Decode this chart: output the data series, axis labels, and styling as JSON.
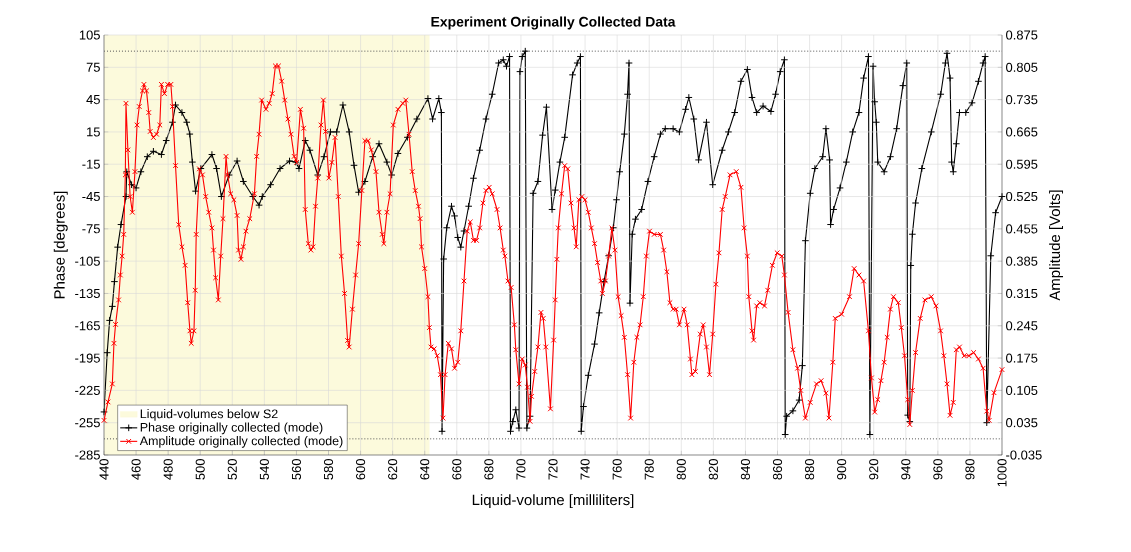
{
  "chart_data": {
    "type": "line",
    "title": "Experiment Originally Collected Data",
    "xlabel": "Liquid-volume [milliliters]",
    "ylabel": "Phase [degrees]",
    "y2label": "Amplitude [Volts]",
    "xlim": [
      440,
      1000
    ],
    "xticks": [
      440,
      460,
      480,
      500,
      520,
      540,
      560,
      580,
      600,
      620,
      640,
      660,
      680,
      700,
      720,
      740,
      760,
      780,
      800,
      820,
      840,
      860,
      880,
      900,
      920,
      940,
      960,
      980,
      1000
    ],
    "ylim": [
      -285,
      105
    ],
    "yticks": [
      -285,
      -255,
      -225,
      -195,
      -165,
      -135,
      -105,
      -75,
      -45,
      -15,
      15,
      45,
      75,
      105
    ],
    "y2lim": [
      -0.035,
      0.875
    ],
    "y2ticks": [
      -0.035,
      0.035,
      0.105,
      0.175,
      0.245,
      0.315,
      0.385,
      0.455,
      0.525,
      0.595,
      0.665,
      0.735,
      0.805,
      0.875
    ],
    "grid": true,
    "legend": "bottom left",
    "bands": [
      {
        "axis": "x",
        "from": 440,
        "to": 643,
        "label": "Liquid-volumes below S2",
        "color": "#fcfadc"
      }
    ],
    "ref_lines": [
      {
        "axis": "y",
        "value": 90,
        "color": "#555555",
        "line_style": "dotted"
      },
      {
        "axis": "y",
        "value": -270,
        "color": "#555555",
        "line_style": "dotted"
      }
    ],
    "series": [
      {
        "name": "Phase originally collected (mode)",
        "color": "#000000",
        "marker": "plus",
        "x": [
          440,
          442,
          443.5,
          445.2,
          446.5,
          448.5,
          450.6,
          453.7,
          454.2,
          457.2,
          460,
          463,
          467,
          470.8,
          475.8,
          478.8,
          482.7,
          484.6,
          488.6,
          491.6,
          493.5,
          495.1,
          497.1,
          500.4,
          507.3,
          510.2,
          513.2,
          518,
          523,
          526.9,
          532.8,
          536.7,
          538.7,
          543.9,
          549.8,
          555.7,
          559.6,
          561.6,
          565.5,
          568.4,
          573.3,
          577.2,
          581.2,
          585.1,
          589,
          592.9,
          595.9,
          598.8,
          602.7,
          607.6,
          611.5,
          616.4,
          619.4,
          623.3,
          629.2,
          635.1,
          642,
          644.9,
          648.8,
          650.4,
          650.8,
          651.8,
          653.7,
          656.7,
          658.6,
          660.6,
          662.5,
          664.5,
          667.4,
          670.4,
          674.3,
          678.2,
          682.1,
          686.1,
          689,
          691,
          692.9,
          693.5,
          694.9,
          696.8,
          698.8,
          699.4,
          700.8,
          702.7,
          703.7,
          705.7,
          707.6,
          710.6,
          713.5,
          715.9,
          719.4,
          721.4,
          724.3,
          727.3,
          732.2,
          735.1,
          737.1,
          737.6,
          739,
          742,
          745.9,
          748.8,
          751.8,
          754.7,
          757.6,
          759.6,
          761.6,
          764.5,
          766.5,
          767.4,
          768,
          769.4,
          771.4,
          775.3,
          779.2,
          783.1,
          787,
          790,
          794.9,
          798.8,
          802.7,
          804.7,
          807.8,
          810.8,
          815.7,
          819.6,
          825.5,
          829.4,
          833.3,
          837.2,
          841.2,
          844.1,
          847,
          851,
          855.9,
          858.8,
          861.7,
          864.3,
          864.8,
          865.7,
          869.6,
          873.5,
          875.5,
          877.4,
          880.4,
          883.3,
          888.2,
          890.2,
          892.5,
          893.1,
          895,
          899,
          902.9,
          906.9,
          910.8,
          913.7,
          916.7,
          917.6,
          919.6,
          920.6,
          921.6,
          922.5,
          926.5,
          930.4,
          934.3,
          938.2,
          940.6,
          941.2,
          942.5,
          943.1,
          944.1,
          946.1,
          950,
          955.9,
          961.8,
          964.7,
          965.7,
          967.6,
          968.6,
          969.6,
          971.5,
          973.5,
          977.4,
          981.3,
          985.3,
          988.2,
          989.5,
          990.5,
          993,
          996,
          1000
        ],
        "values": [
          -245,
          -190,
          -160,
          -147,
          -124,
          -92,
          -71,
          -45,
          -22,
          -34,
          -37,
          -22,
          -8,
          -3,
          -6,
          7,
          24,
          40,
          33,
          24,
          13,
          -13,
          -40,
          -19,
          -6,
          -19,
          -45,
          -25,
          -12,
          -31,
          -45,
          -53,
          -45,
          -34,
          -19,
          -12,
          -13,
          -19,
          7,
          -2,
          -25,
          -8,
          15,
          15,
          40,
          15,
          -16,
          -41,
          -31,
          -8,
          4,
          -13,
          -25,
          -5,
          10,
          27,
          46,
          27,
          46,
          33,
          -263,
          -103,
          -74,
          -54,
          -63,
          -83,
          -92,
          -77,
          -54,
          -28,
          -2,
          27,
          50,
          79,
          82,
          76,
          85,
          -263,
          -254,
          -243,
          -260,
          71,
          85,
          90,
          -260,
          -249,
          -42,
          -31,
          12,
          38,
          -57,
          -39,
          -13,
          10,
          68,
          79,
          85,
          -263,
          -240,
          -211,
          -182,
          -153,
          -124,
          -100,
          -74,
          -48,
          -22,
          13,
          50,
          79,
          -144,
          -80,
          -66,
          -57,
          -31,
          -8,
          13,
          18,
          18,
          15,
          36,
          47,
          27,
          -11,
          24,
          -34,
          -2,
          15,
          33,
          62,
          73,
          47,
          33,
          39,
          34,
          50,
          71,
          82,
          -266,
          -249,
          -244,
          -234,
          -202,
          -86,
          -42,
          -19,
          -8,
          18,
          -11,
          -71,
          -57,
          -37,
          -13,
          15,
          33,
          65,
          85,
          -266,
          76,
          43,
          24,
          -13,
          -22,
          -8,
          18,
          58,
          79,
          -248,
          -254,
          -109,
          -80,
          -51,
          -19,
          15,
          50,
          79,
          88,
          65,
          -13,
          -22,
          4,
          33,
          33,
          42,
          62,
          79,
          85,
          -255,
          -100,
          -60,
          -45
        ]
      },
      {
        "name": "Amplitude originally collected (mode)",
        "color": "#ff0000",
        "marker": "cross",
        "axis": "y2",
        "x": [
          440,
          442.5,
          445.2,
          446.2,
          447.2,
          449.1,
          450.2,
          451.3,
          452.3,
          453.3,
          453.7,
          454.9,
          456.3,
          457.7,
          459.3,
          460.6,
          462,
          464,
          464.9,
          466.5,
          467.9,
          468.8,
          470.8,
          472.8,
          474.8,
          475.8,
          477.7,
          479.7,
          481.7,
          482.7,
          484.6,
          486.6,
          488.6,
          490.6,
          492.2,
          493.6,
          494.4,
          496.1,
          496.9,
          497.5,
          499.5,
          501.4,
          503.4,
          505.3,
          507.3,
          508.3,
          509.6,
          511.3,
          512.8,
          514.2,
          516.1,
          517.1,
          519,
          521,
          523,
          523.9,
          525.4,
          526.9,
          528.5,
          530.9,
          533.8,
          535.2,
          536.7,
          538.3,
          541,
          543,
          544.9,
          546.9,
          548.8,
          550.8,
          552.7,
          554.7,
          556.6,
          558.6,
          560.1,
          562.5,
          564.5,
          565.5,
          567.4,
          569,
          570.4,
          571.9,
          573.3,
          575.3,
          576.8,
          578.2,
          580.2,
          582.1,
          584.1,
          586.1,
          588,
          590,
          591.9,
          592.9,
          594.9,
          596.9,
          598.8,
          600.8,
          602.7,
          604.7,
          606.7,
          609.6,
          611.5,
          613.5,
          614.5,
          616.4,
          618.4,
          620.4,
          623.3,
          626.3,
          628.2,
          630.2,
          632.2,
          634.1,
          636.1,
          637.1,
          638,
          640,
          642,
          642.9,
          643.9,
          645.9,
          647.8,
          649.8,
          651.4,
          652.7,
          654.7,
          656.7,
          658.6,
          660.6,
          662.5,
          664.5,
          666.5,
          668.4,
          670.4,
          672.3,
          674.3,
          676.3,
          678.2,
          680.2,
          682.1,
          685.1,
          687,
          689,
          690,
          691.9,
          693.9,
          695.9,
          696.8,
          698.8,
          700.8,
          702.7,
          704.1,
          705.7,
          706.6,
          708.6,
          710.6,
          712.5,
          713.9,
          715.5,
          718.4,
          720.4,
          721.4,
          722.4,
          723.3,
          725.3,
          727.3,
          729.2,
          731.2,
          733.1,
          734.5,
          736.1,
          738,
          740,
          742,
          743.9,
          745.9,
          747.8,
          749.8,
          750.8,
          752.7,
          754.7,
          756.7,
          758.6,
          760.6,
          762.5,
          764.5,
          766.5,
          768.4,
          770.4,
          772.3,
          774.3,
          776.3,
          778.2,
          780.2,
          783.1,
          787,
          789,
          791,
          792.9,
          794.9,
          796.8,
          798.8,
          801.7,
          803.7,
          805.7,
          806.6,
          808.8,
          811.8,
          813.7,
          815.7,
          817.6,
          819.6,
          821.6,
          823.5,
          825.5,
          827.4,
          830.4,
          834.3,
          837.2,
          839.2,
          841.2,
          842.1,
          844.1,
          845.1,
          847,
          849,
          851.9,
          853.9,
          856.8,
          859.8,
          862.7,
          864.3,
          866.6,
          869.6,
          872.5,
          874.5,
          877.4,
          880.4,
          884.3,
          887.2,
          890.2,
          892.1,
          894.5,
          896,
          900,
          904.9,
          907.8,
          910.8,
          913.7,
          916.7,
          918.6,
          920.6,
          922.5,
          924.5,
          926.5,
          928.4,
          930.4,
          932.3,
          935.3,
          937.2,
          939.2,
          941.2,
          942.5,
          944.1,
          946.1,
          949,
          951.9,
          955.9,
          958.8,
          961.7,
          963.7,
          965.7,
          967.6,
          969.6,
          971.5,
          973.5,
          976.4,
          979.4,
          982.3,
          985.3,
          988.2,
          990.5,
          992,
          995,
          1000
        ],
        "values": [
          0.04,
          0.08,
          0.119,
          0.207,
          0.248,
          0.301,
          0.355,
          0.396,
          0.443,
          0.572,
          0.727,
          0.626,
          0.525,
          0.491,
          0.579,
          0.68,
          0.72,
          0.754,
          0.768,
          0.754,
          0.707,
          0.666,
          0.653,
          0.66,
          0.68,
          0.768,
          0.748,
          0.768,
          0.768,
          0.72,
          0.592,
          0.464,
          0.416,
          0.376,
          0.295,
          0.234,
          0.207,
          0.234,
          0.322,
          0.443,
          0.585,
          0.572,
          0.525,
          0.491,
          0.457,
          0.409,
          0.349,
          0.301,
          0.396,
          0.477,
          0.612,
          0.572,
          0.531,
          0.518,
          0.484,
          0.409,
          0.389,
          0.416,
          0.45,
          0.477,
          0.531,
          0.612,
          0.66,
          0.734,
          0.714,
          0.727,
          0.748,
          0.808,
          0.808,
          0.775,
          0.734,
          0.693,
          0.66,
          0.612,
          0.599,
          0.714,
          0.673,
          0.497,
          0.423,
          0.409,
          0.416,
          0.504,
          0.565,
          0.68,
          0.734,
          0.666,
          0.565,
          0.599,
          0.653,
          0.525,
          0.396,
          0.315,
          0.213,
          0.199,
          0.281,
          0.355,
          0.423,
          0.538,
          0.646,
          0.646,
          0.626,
          0.579,
          0.491,
          0.443,
          0.423,
          0.491,
          0.531,
          0.68,
          0.714,
          0.727,
          0.734,
          0.66,
          0.579,
          0.538,
          0.504,
          0.477,
          0.416,
          0.369,
          0.308,
          0.241,
          0.199,
          0.195,
          0.18,
          0.139,
          0.045,
          0.139,
          0.207,
          0.195,
          0.153,
          0.166,
          0.234,
          0.342,
          0.45,
          0.47,
          0.43,
          0.43,
          0.457,
          0.511,
          0.538,
          0.545,
          0.531,
          0.497,
          0.457,
          0.409,
          0.396,
          0.342,
          0.328,
          0.247,
          0.193,
          0.119,
          0.173,
          0.16,
          0.112,
          0.038,
          0.092,
          0.146,
          0.199,
          0.274,
          0.261,
          0.199,
          0.065,
          0.214,
          0.301,
          0.389,
          0.457,
          0.531,
          0.592,
          0.585,
          0.511,
          0.457,
          0.416,
          0.518,
          0.525,
          0.518,
          0.491,
          0.457,
          0.423,
          0.382,
          0.342,
          0.315,
          0.342,
          0.396,
          0.457,
          0.409,
          0.308,
          0.267,
          0.22,
          0.139,
          0.045,
          0.166,
          0.22,
          0.247,
          0.308,
          0.396,
          0.45,
          0.443,
          0.443,
          0.409,
          0.362,
          0.295,
          0.281,
          0.281,
          0.247,
          0.281,
          0.247,
          0.173,
          0.139,
          0.146,
          0.227,
          0.247,
          0.199,
          0.139,
          0.227,
          0.335,
          0.403,
          0.497,
          0.525,
          0.572,
          0.579,
          0.545,
          0.457,
          0.396,
          0.308,
          0.234,
          0.214,
          0.288,
          0.295,
          0.288,
          0.322,
          0.376,
          0.403,
          0.396,
          0.355,
          0.274,
          0.193,
          0.153,
          0.105,
          0.045,
          0.079,
          0.119,
          0.126,
          0.099,
          0.045,
          0.166,
          0.261,
          0.27,
          0.308,
          0.369,
          0.355,
          0.342,
          0.234,
          0.132,
          0.058,
          0.085,
          0.126,
          0.166,
          0.22,
          0.281,
          0.308,
          0.295,
          0.241,
          0.18,
          0.085,
          0.031,
          0.105,
          0.187,
          0.261,
          0.301,
          0.308,
          0.288,
          0.234,
          0.18,
          0.119,
          0.051,
          0.079,
          0.193,
          0.199,
          0.18,
          0.18,
          0.187,
          0.173,
          0.153,
          0.06,
          0.04,
          0.1,
          0.15
        ]
      }
    ]
  }
}
